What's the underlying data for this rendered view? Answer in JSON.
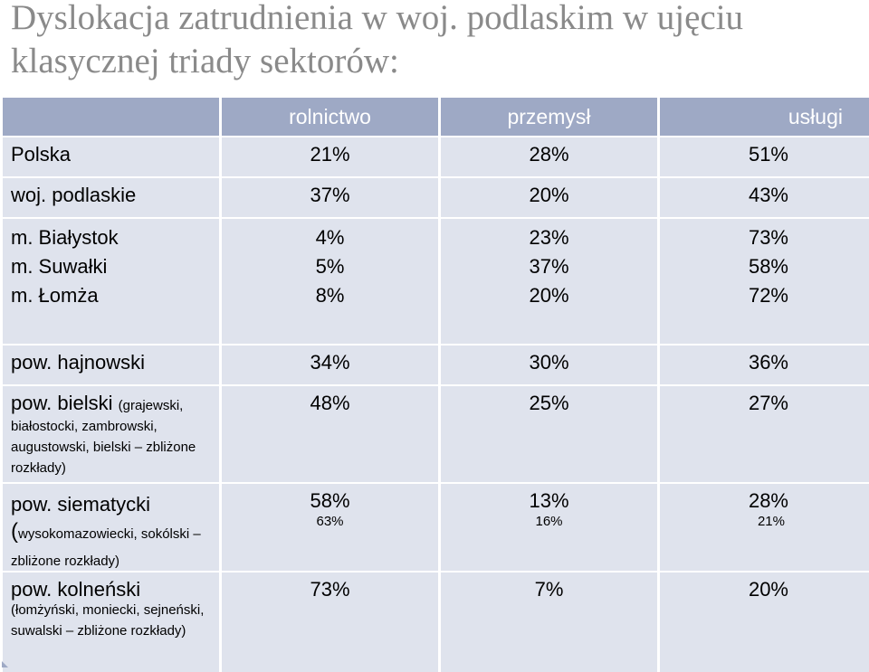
{
  "title": "Dyslokacja zatrudnienia w woj. podlaskim w ujęciu klasycznej triady sektorów:",
  "headers": [
    "rolnictwo",
    "przemysł",
    "usługi"
  ],
  "rows": [
    {
      "label": "Polska",
      "values": [
        "21%",
        "28%",
        "51%"
      ]
    },
    {
      "label": "woj. podlaskie",
      "values": [
        "37%",
        "20%",
        "43%"
      ]
    },
    {
      "labels": [
        "m. Białystok",
        "m. Suwałki",
        "m. Łomża"
      ],
      "col1": [
        "4%",
        "5%",
        "8%"
      ],
      "col2": [
        "23%",
        "37%",
        "20%"
      ],
      "col3": [
        "73%",
        "58%",
        "72%"
      ]
    },
    {
      "label": "pow. hajnowski",
      "values": [
        "34%",
        "30%",
        "36%"
      ]
    },
    {
      "label": "pow. bielski",
      "note_inline": "(grajewski,",
      "note": "białostocki, zambrowski, augustowski, bielski – zbliżone rozkłady)",
      "values": [
        "48%",
        "25%",
        "27%"
      ]
    },
    {
      "label": "pow. siematycki",
      "paren": "(",
      "note": "wysokomazowiecki, sokólski – zbliżone rozkłady)",
      "values": [
        "58%",
        "13%",
        "28%"
      ],
      "sub_values": [
        "63%",
        "16%",
        "21%"
      ]
    },
    {
      "label": "pow. kolneński",
      "note": "(łomżyński, moniecki, sejneński, suwalski – zbliżone rozkłady)",
      "values": [
        "73%",
        "7%",
        "20%"
      ]
    }
  ]
}
